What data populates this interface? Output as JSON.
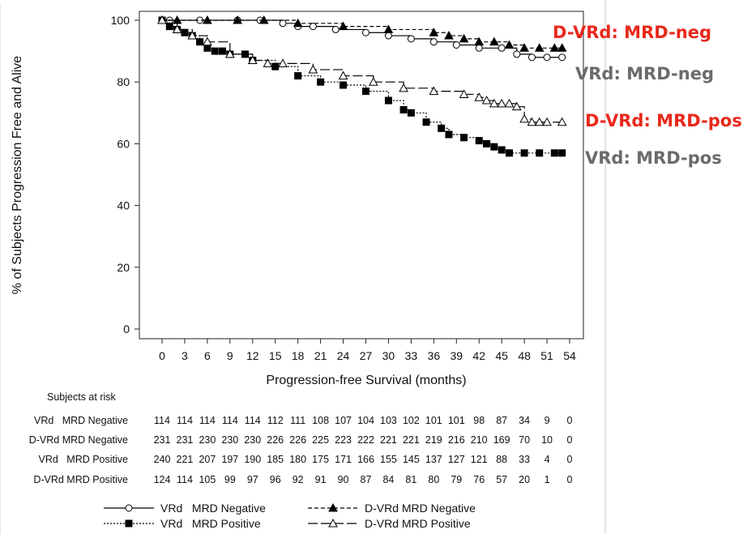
{
  "chart_data": {
    "type": "line",
    "subtype": "kaplan-meier",
    "xlabel": "Progression-free Survival (months)",
    "ylabel": "% of Subjects Progression Free and Alive",
    "xlim": [
      0,
      54
    ],
    "ylim": [
      0,
      100
    ],
    "xticks": [
      0,
      3,
      6,
      9,
      12,
      15,
      18,
      21,
      24,
      27,
      30,
      33,
      36,
      39,
      42,
      45,
      48,
      51,
      54
    ],
    "yticks": [
      0,
      20,
      40,
      60,
      80,
      100
    ],
    "grid": false,
    "series": [
      {
        "name": "VRd   MRD Negative",
        "line_style": "solid",
        "marker": "open-circle",
        "x": [
          0,
          1,
          5,
          10,
          13,
          16,
          18,
          20,
          23,
          27,
          30,
          33,
          36,
          39,
          42,
          45,
          47,
          49,
          51,
          53
        ],
        "y": [
          100,
          100,
          100,
          100,
          100,
          99,
          98,
          98,
          97,
          96,
          95,
          94,
          93,
          92,
          91,
          91,
          89,
          88,
          88,
          88
        ]
      },
      {
        "name": "D-VRd MRD Negative",
        "line_style": "dashed",
        "marker": "filled-triangle",
        "x": [
          0,
          2,
          6,
          10,
          13.5,
          18,
          24,
          30,
          36,
          38,
          40,
          42,
          44,
          46,
          48,
          50,
          52,
          53
        ],
        "y": [
          100,
          100,
          100,
          100,
          100,
          99,
          98,
          97,
          96,
          95,
          94,
          93,
          93,
          92,
          91,
          91,
          91,
          91
        ]
      },
      {
        "name": "VRd   MRD Positive",
        "line_style": "dotted",
        "marker": "filled-square",
        "x": [
          0,
          1,
          2,
          3,
          4,
          5,
          6,
          7,
          8,
          9,
          11,
          12,
          15,
          18,
          21,
          24,
          27,
          30,
          32,
          33,
          35,
          37,
          38,
          40,
          42,
          43,
          44,
          45,
          46,
          48,
          50,
          52,
          53
        ],
        "y": [
          100,
          98,
          97,
          96,
          95,
          93,
          91,
          90,
          90,
          89,
          89,
          87,
          85,
          82,
          80,
          79,
          77,
          74,
          71,
          70,
          67,
          65,
          63,
          62,
          61,
          60,
          59,
          58,
          57,
          57,
          57,
          57,
          57
        ]
      },
      {
        "name": "D-VRd MRD Positive",
        "line_style": "long-dash",
        "marker": "open-triangle",
        "x": [
          0,
          2,
          4,
          6,
          9,
          12,
          14,
          16,
          20,
          24,
          28,
          32,
          36,
          40,
          42,
          43,
          44,
          45,
          46,
          47,
          48,
          49,
          50,
          51,
          53
        ],
        "y": [
          100,
          97,
          95,
          93,
          89,
          87,
          86,
          86,
          84,
          82,
          80,
          78,
          77,
          76,
          75,
          74,
          73,
          73,
          73,
          72,
          68,
          67,
          67,
          67,
          67
        ]
      }
    ],
    "annotations": [
      {
        "text": "D-VRd: MRD-neg",
        "color": "#e8291c"
      },
      {
        "text": "VRd: MRD-neg",
        "color": "#6b6b6b"
      },
      {
        "text": "D-VRd: MRD-pos",
        "color": "#e8291c"
      },
      {
        "text": "VRd: MRD-pos",
        "color": "#6b6b6b"
      }
    ],
    "risk_table": {
      "title": "Subjects at risk",
      "rows": [
        {
          "label": "VRd   MRD Negative",
          "values": [
            "114",
            "114",
            "114",
            "114",
            "114",
            "112",
            "111",
            "108",
            "107",
            "104",
            "103",
            "102",
            "101",
            "101",
            "98",
            "87",
            "34",
            "9",
            "0"
          ]
        },
        {
          "label": "D-VRd MRD Negative",
          "values": [
            "231",
            "231",
            "230",
            "230",
            "230",
            "226",
            "226",
            "225",
            "223",
            "222",
            "221",
            "221",
            "219",
            "216",
            "210",
            "169",
            "70",
            "10",
            "0"
          ]
        },
        {
          "label": "VRd   MRD Positive",
          "values": [
            "240",
            "221",
            "207",
            "197",
            "190",
            "185",
            "180",
            "175",
            "171",
            "166",
            "155",
            "145",
            "137",
            "127",
            "121",
            "88",
            "33",
            "4",
            "0"
          ]
        },
        {
          "label": "D-VRd MRD Positive",
          "values": [
            "124",
            "114",
            "105",
            "99",
            "97",
            "96",
            "92",
            "91",
            "90",
            "87",
            "84",
            "81",
            "80",
            "79",
            "76",
            "57",
            "20",
            "1",
            "0"
          ]
        }
      ]
    },
    "legend": {
      "placement": "bottom",
      "entries": [
        {
          "series": 0,
          "label": "VRd   MRD Negative"
        },
        {
          "series": 1,
          "label": "D-VRd MRD Negative"
        },
        {
          "series": 2,
          "label": "VRd   MRD Positive"
        },
        {
          "series": 3,
          "label": "D-VRd MRD Positive"
        }
      ]
    }
  }
}
